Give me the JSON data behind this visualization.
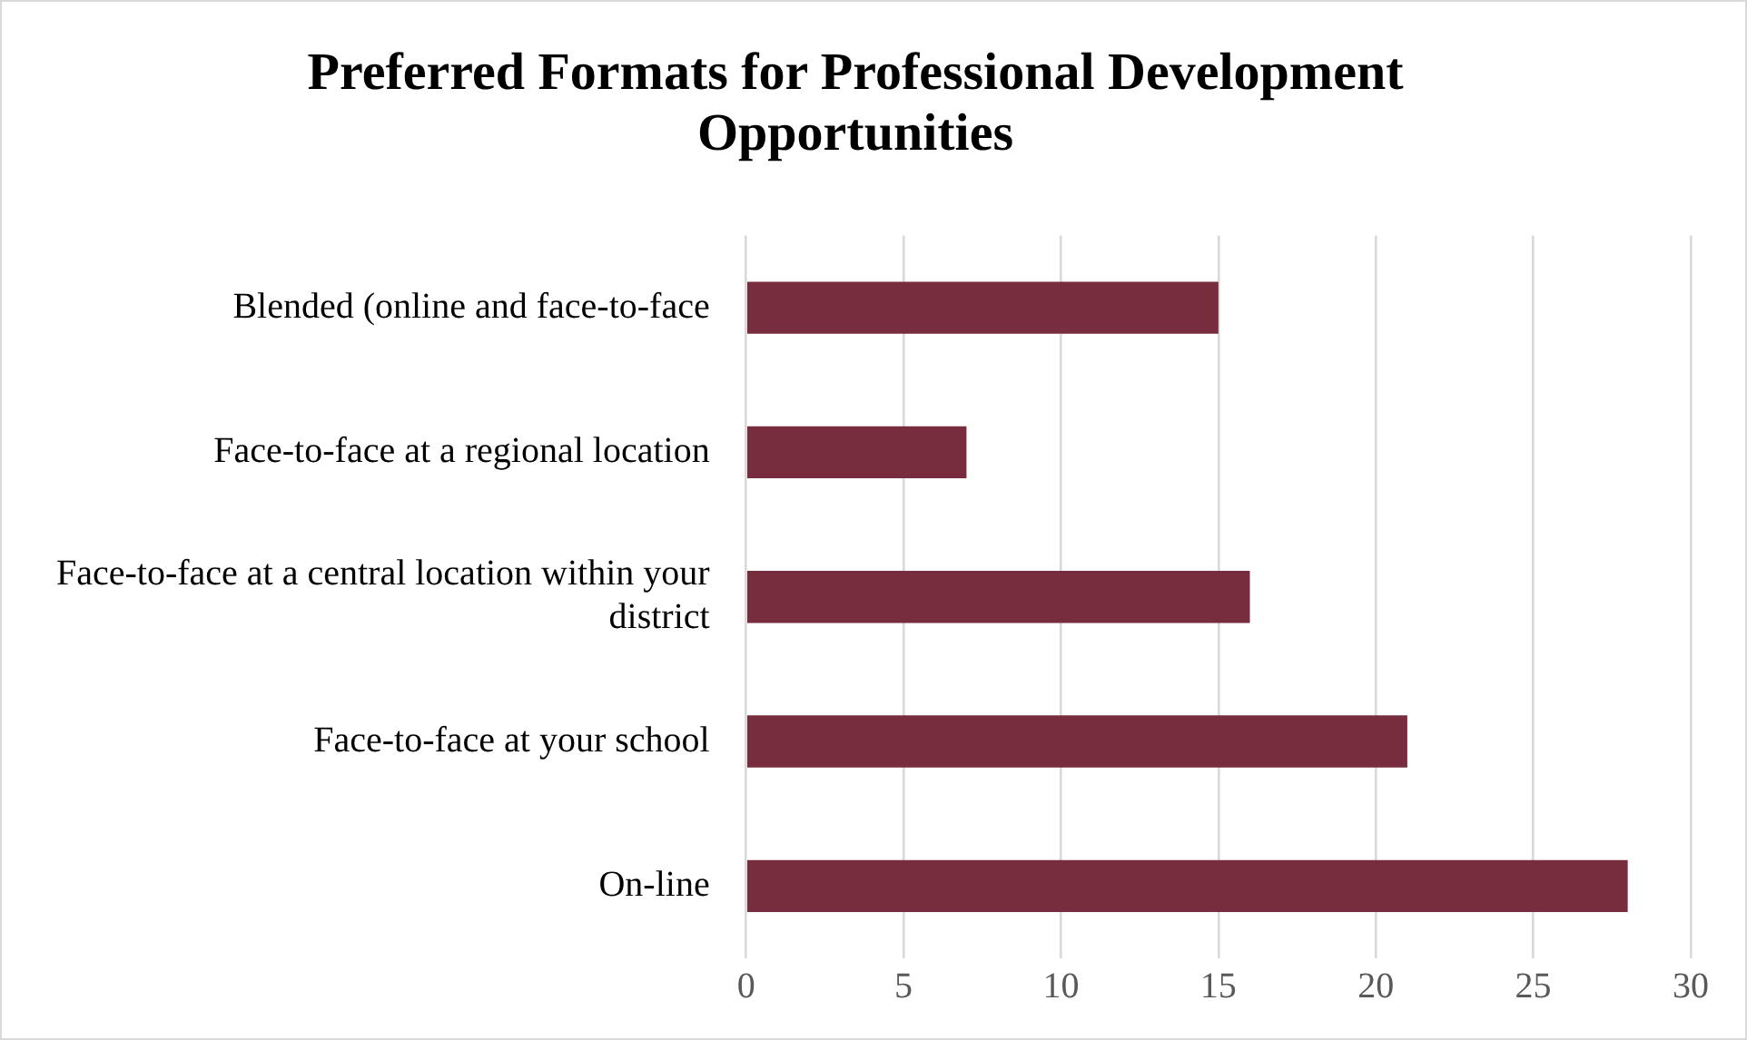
{
  "chart_data": {
    "type": "bar",
    "orientation": "horizontal",
    "title": "Preferred Formats for Professional Development Opportunities",
    "categories": [
      "Blended (online and face-to-face",
      "Face-to-face at a regional location",
      "Face-to-face at a central location within your district",
      "Face-to-face at your school",
      "On-line"
    ],
    "values": [
      15,
      7,
      16,
      21,
      28
    ],
    "color": "#782d3f",
    "xlim": [
      0,
      30
    ],
    "xticks": [
      0,
      5,
      10,
      15,
      20,
      25,
      30
    ],
    "grid": "x",
    "legend": false
  }
}
